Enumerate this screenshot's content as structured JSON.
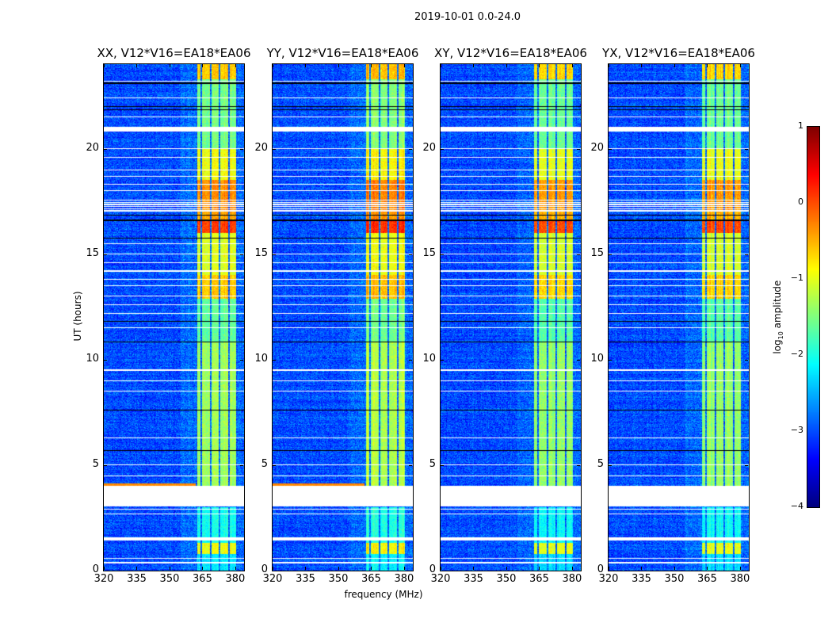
{
  "chart_data": {
    "type": "heatmap",
    "title": "2019-10-01 0.0-24.0",
    "xlabel": "frequency (MHz)",
    "ylabel": "UT (hours)",
    "xlim": [
      320,
      384
    ],
    "ylim": [
      0,
      24
    ],
    "xticks": [
      "320",
      "335",
      "350",
      "365",
      "380"
    ],
    "xtick_values": [
      320,
      335,
      350,
      365,
      380
    ],
    "yticks": [
      "0",
      "5",
      "10",
      "15",
      "20"
    ],
    "ytick_values": [
      0,
      5,
      10,
      15,
      20
    ],
    "panels": [
      {
        "title": "XX, V12*V16=EA18*EA06",
        "offset": 0,
        "low_band_edge": true
      },
      {
        "title": "YY, V12*V16=EA18*EA06",
        "offset": 0.05,
        "low_band_edge": true
      },
      {
        "title": "XY, V12*V16=EA18*EA06",
        "offset": -0.1,
        "low_band_edge": false
      },
      {
        "title": "YX, V12*V16=EA18*EA06",
        "offset": -0.1,
        "low_band_edge": false
      }
    ],
    "background_level": -3.0,
    "rfi_channels_mhz": [
      [
        362.5,
        364.2
      ],
      [
        364.8,
        368.3
      ],
      [
        369.0,
        372.6
      ],
      [
        373.3,
        376.8
      ],
      [
        377.4,
        380.5
      ]
    ],
    "rfi_time_levels": [
      {
        "t": [
          0,
          0.8
        ],
        "level": -2.2
      },
      {
        "t": [
          0.8,
          1.3
        ],
        "level": -0.9
      },
      {
        "t": [
          1.3,
          3.0
        ],
        "level": -2.0
      },
      {
        "t": [
          4.0,
          10.8
        ],
        "level": -1.3
      },
      {
        "t": [
          10.8,
          12.9
        ],
        "level": -1.6
      },
      {
        "t": [
          12.9,
          14.0
        ],
        "level": -0.6
      },
      {
        "t": [
          14.0,
          16.0
        ],
        "level": -1.0
      },
      {
        "t": [
          16.0,
          16.6
        ],
        "level": 0.1
      },
      {
        "t": [
          16.6,
          17.0
        ],
        "level": -0.4
      },
      {
        "t": [
          17.0,
          18.5
        ],
        "level": -0.3
      },
      {
        "t": [
          18.5,
          20.0
        ],
        "level": -0.9
      },
      {
        "t": [
          20.0,
          23.3
        ],
        "level": -1.5
      },
      {
        "t": [
          23.3,
          24.0
        ],
        "level": -0.6
      }
    ],
    "flagged_intervals_hours": [
      [
        3.05,
        4.0
      ],
      [
        1.42,
        1.58
      ],
      [
        0.35,
        0.4
      ],
      [
        0.55,
        0.6
      ],
      [
        20.8,
        21.05
      ]
    ],
    "flagged_lines_hours": [
      2.7,
      2.9,
      4.5,
      5.0,
      6.3,
      8.5,
      9.0,
      9.5,
      11.5,
      12.2,
      12.6,
      13.0,
      13.5,
      13.8,
      14.2,
      14.6,
      15.0,
      15.5,
      17.05,
      17.15,
      17.25,
      17.35,
      17.45,
      17.55,
      18.0,
      18.3,
      18.7,
      19.0,
      19.6,
      20.0,
      21.5,
      22.4,
      23.2
    ],
    "dropout_lines_hours": [
      5.7,
      7.6,
      10.85,
      11.8,
      15.75,
      16.6,
      16.85,
      21.85,
      22.0,
      23.1
    ],
    "colorbar": {
      "label_prefix": "log",
      "label_sub": "10",
      "label_suffix": " amplitude",
      "range": [
        -4,
        1
      ],
      "ticks": [
        "1",
        "0",
        "−1",
        "−2",
        "−3",
        "−4"
      ],
      "tick_values": [
        1,
        0,
        -1,
        -2,
        -3,
        -4
      ],
      "colormap": "jet"
    }
  }
}
